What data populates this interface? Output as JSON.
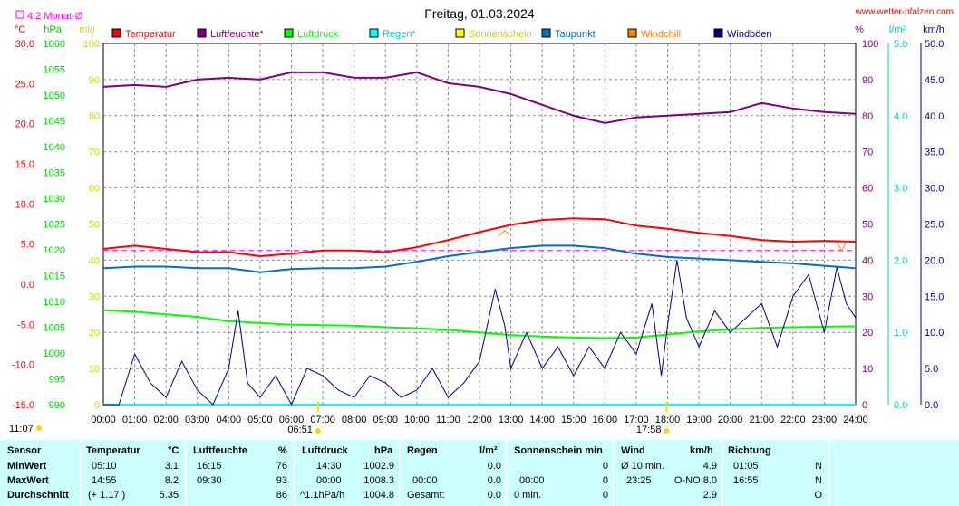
{
  "header": {
    "title": "Freitag, 01.03.2024",
    "site": "www.wetter-pfalzen.com",
    "month_avg": "4.2 Monat-Ø"
  },
  "units": {
    "left1": "°C",
    "left2": "hPa",
    "left3": "min",
    "right1": "%",
    "right2": "l/m²",
    "right3": "km/h"
  },
  "legend": [
    {
      "label": "Temperatur",
      "color": "#ff0000"
    },
    {
      "label": "Luftfeuchte*",
      "color": "#800080"
    },
    {
      "label": "Luftdruck",
      "color": "#00ff00"
    },
    {
      "label": "Regen*",
      "color": "#00ffff"
    },
    {
      "label": "Sonnenschein",
      "color": "#ffff00"
    },
    {
      "label": "Taupunkt",
      "color": "#0070c0"
    },
    {
      "label": "Windchill",
      "color": "#ff8000"
    },
    {
      "label": "Windböen",
      "color": "#000080"
    }
  ],
  "markers": {
    "sunrise": "06:51",
    "sunset": "17:58",
    "sunshine_time": "11:07"
  },
  "chart_data": {
    "type": "line",
    "x_ticks": [
      "00:00",
      "01:00",
      "02:00",
      "03:00",
      "04:00",
      "05:00",
      "06:00",
      "07:00",
      "08:00",
      "09:00",
      "10:00",
      "11:00",
      "12:00",
      "13:00",
      "14:00",
      "15:00",
      "16:00",
      "17:00",
      "18:00",
      "19:00",
      "20:00",
      "21:00",
      "22:00",
      "23:00",
      "24:00"
    ],
    "axes": {
      "temperature_c": {
        "ticks": [
          "30.0",
          "25.0",
          "20.0",
          "15.0",
          "10.0",
          "5.0",
          "0.0",
          "-5.0",
          "-10.0",
          "-15.0"
        ],
        "range": [
          -15,
          30
        ]
      },
      "pressure_hpa": {
        "ticks": [
          "1060",
          "1055",
          "1050",
          "1045",
          "1040",
          "1035",
          "1030",
          "1025",
          "1020",
          "1015",
          "1010",
          "1005",
          "1000",
          "995",
          "990"
        ],
        "range": [
          990,
          1060
        ]
      },
      "sunshine_min": {
        "ticks": [
          "100",
          "90",
          "80",
          "70",
          "60",
          "50",
          "40",
          "30",
          "20",
          "10",
          "0"
        ],
        "range": [
          0,
          100
        ]
      },
      "humidity_pct": {
        "ticks": [
          "100",
          "90",
          "80",
          "70",
          "60",
          "50",
          "40",
          "30",
          "20",
          "10",
          "0"
        ],
        "range": [
          0,
          100
        ]
      },
      "rain_mm": {
        "ticks": [
          "5.0",
          "4.0",
          "3.0",
          "2.0",
          "1.0",
          "0.0"
        ],
        "range": [
          0,
          5
        ]
      },
      "wind_kmh": {
        "ticks": [
          "50.0",
          "45.0",
          "40.0",
          "35.0",
          "30.0",
          "25.0",
          "20.0",
          "15.0",
          "10.0",
          "5.0",
          "0.0"
        ],
        "range": [
          0,
          50
        ]
      }
    },
    "month_avg_temp": 4.2,
    "series": [
      {
        "name": "Temperatur",
        "color": "#ff0000",
        "axis": "temperature_c",
        "points": [
          [
            0,
            4.4
          ],
          [
            1,
            4.8
          ],
          [
            2,
            4.4
          ],
          [
            3,
            4.0
          ],
          [
            4,
            4.0
          ],
          [
            5,
            3.5
          ],
          [
            6,
            3.8
          ],
          [
            7,
            4.2
          ],
          [
            8,
            4.2
          ],
          [
            9,
            4.0
          ],
          [
            10,
            4.6
          ],
          [
            11,
            5.5
          ],
          [
            12,
            6.5
          ],
          [
            13,
            7.4
          ],
          [
            14,
            8.0
          ],
          [
            15,
            8.2
          ],
          [
            16,
            8.1
          ],
          [
            17,
            7.3
          ],
          [
            18,
            6.9
          ],
          [
            19,
            6.4
          ],
          [
            20,
            6.0
          ],
          [
            21,
            5.5
          ],
          [
            22,
            5.3
          ],
          [
            23,
            5.4
          ],
          [
            24,
            5.3
          ]
        ]
      },
      {
        "name": "Luftfeuchte*",
        "color": "#800080",
        "axis": "humidity_pct",
        "points": [
          [
            0,
            88
          ],
          [
            1,
            88.5
          ],
          [
            2,
            88
          ],
          [
            3,
            90
          ],
          [
            4,
            90.5
          ],
          [
            5,
            90
          ],
          [
            6,
            92
          ],
          [
            7,
            92
          ],
          [
            8,
            90.5
          ],
          [
            9,
            90.5
          ],
          [
            10,
            92
          ],
          [
            11,
            89
          ],
          [
            12,
            88
          ],
          [
            13,
            86
          ],
          [
            14,
            83
          ],
          [
            15,
            80
          ],
          [
            16,
            78
          ],
          [
            17,
            79.5
          ],
          [
            18,
            80
          ],
          [
            19,
            80.5
          ],
          [
            20,
            81
          ],
          [
            21,
            83.5
          ],
          [
            22,
            82
          ],
          [
            23,
            81
          ],
          [
            24,
            80.5
          ]
        ]
      },
      {
        "name": "Luftdruck",
        "color": "#00ff00",
        "axis": "pressure_hpa",
        "points": [
          [
            0,
            1008.3
          ],
          [
            1,
            1008.0
          ],
          [
            2,
            1007.5
          ],
          [
            3,
            1007.0
          ],
          [
            4,
            1006.2
          ],
          [
            5,
            1005.8
          ],
          [
            6,
            1005.5
          ],
          [
            7,
            1005.4
          ],
          [
            8,
            1005.3
          ],
          [
            9,
            1005.0
          ],
          [
            10,
            1004.8
          ],
          [
            11,
            1004.5
          ],
          [
            12,
            1004.0
          ],
          [
            13,
            1003.5
          ],
          [
            14,
            1003.2
          ],
          [
            15,
            1003.0
          ],
          [
            16,
            1002.9
          ],
          [
            17,
            1003.0
          ],
          [
            18,
            1003.6
          ],
          [
            19,
            1004.2
          ],
          [
            20,
            1004.6
          ],
          [
            21,
            1004.9
          ],
          [
            22,
            1005.0
          ],
          [
            23,
            1005.1
          ],
          [
            24,
            1005.2
          ]
        ]
      },
      {
        "name": "Taupunkt",
        "color": "#0070c0",
        "axis": "temperature_c",
        "points": [
          [
            0,
            2.0
          ],
          [
            1,
            2.2
          ],
          [
            2,
            2.2
          ],
          [
            3,
            2.0
          ],
          [
            4,
            2.0
          ],
          [
            5,
            1.5
          ],
          [
            6,
            1.9
          ],
          [
            7,
            2.0
          ],
          [
            8,
            2.0
          ],
          [
            9,
            2.2
          ],
          [
            10,
            2.8
          ],
          [
            11,
            3.5
          ],
          [
            12,
            4.0
          ],
          [
            13,
            4.5
          ],
          [
            14,
            4.8
          ],
          [
            15,
            4.8
          ],
          [
            16,
            4.5
          ],
          [
            17,
            3.8
          ],
          [
            18,
            3.4
          ],
          [
            19,
            3.2
          ],
          [
            20,
            3.0
          ],
          [
            21,
            2.8
          ],
          [
            22,
            2.6
          ],
          [
            23,
            2.3
          ],
          [
            24,
            2.0
          ]
        ]
      },
      {
        "name": "Windchill",
        "color": "#ff8000",
        "axis": "temperature_c",
        "points": [
          [
            12.6,
            6.0
          ],
          [
            12.8,
            6.7
          ],
          [
            23.4,
            5.3
          ],
          [
            23.55,
            4.1
          ],
          [
            23.7,
            5.3
          ]
        ]
      },
      {
        "name": "Regen*",
        "color": "#00ffff",
        "axis": "rain_mm",
        "points": [
          [
            0,
            0
          ],
          [
            24,
            0
          ]
        ]
      },
      {
        "name": "Windböen",
        "color": "#000080",
        "axis": "wind_kmh",
        "points": [
          [
            0,
            0
          ],
          [
            0.5,
            0
          ],
          [
            1.0,
            7
          ],
          [
            1.5,
            3
          ],
          [
            2.0,
            1
          ],
          [
            2.5,
            6
          ],
          [
            3.0,
            2
          ],
          [
            3.5,
            0
          ],
          [
            4.0,
            5
          ],
          [
            4.3,
            13
          ],
          [
            4.6,
            3
          ],
          [
            5.0,
            1
          ],
          [
            5.5,
            4
          ],
          [
            6.0,
            0
          ],
          [
            6.5,
            5
          ],
          [
            7.0,
            4
          ],
          [
            7.5,
            2
          ],
          [
            8.0,
            1
          ],
          [
            8.5,
            4
          ],
          [
            9.0,
            3
          ],
          [
            9.5,
            1
          ],
          [
            10.0,
            2
          ],
          [
            10.5,
            5
          ],
          [
            11.0,
            1
          ],
          [
            11.5,
            3
          ],
          [
            12.0,
            6
          ],
          [
            12.5,
            16
          ],
          [
            12.8,
            11
          ],
          [
            13.0,
            5
          ],
          [
            13.5,
            10
          ],
          [
            14.0,
            5
          ],
          [
            14.5,
            8
          ],
          [
            15.0,
            4
          ],
          [
            15.5,
            8
          ],
          [
            16.0,
            5
          ],
          [
            16.5,
            10
          ],
          [
            17.0,
            7
          ],
          [
            17.5,
            14
          ],
          [
            17.8,
            4
          ],
          [
            18.0,
            11
          ],
          [
            18.3,
            20
          ],
          [
            18.6,
            12
          ],
          [
            19.0,
            8
          ],
          [
            19.5,
            13
          ],
          [
            20.0,
            10
          ],
          [
            20.5,
            12
          ],
          [
            21.0,
            14
          ],
          [
            21.5,
            8
          ],
          [
            22.0,
            15
          ],
          [
            22.5,
            18
          ],
          [
            23.0,
            10
          ],
          [
            23.4,
            19
          ],
          [
            23.7,
            14
          ],
          [
            24,
            12
          ]
        ]
      }
    ],
    "markers": [
      {
        "name": "sunrise",
        "x": 6.85,
        "label": "06:51"
      },
      {
        "name": "sunset",
        "x": 17.97,
        "label": "17:58"
      }
    ]
  },
  "stats": {
    "sensor": {
      "header": "Sensor",
      "rows": [
        "MinWert",
        "MaxWert",
        "Durchschnitt"
      ]
    },
    "temperature": {
      "header": "Temperatur",
      "unit": "°C",
      "rows": [
        [
          "05:10",
          "3.1"
        ],
        [
          "14:55",
          "8.2"
        ],
        [
          "(+ 1.17 )",
          "5.35"
        ]
      ]
    },
    "humidity": {
      "header": "Luftfeuchte",
      "unit": "%",
      "rows": [
        [
          "16:15",
          "76"
        ],
        [
          "09:30",
          "93"
        ],
        [
          "",
          "86"
        ]
      ]
    },
    "pressure": {
      "header": "Luftdruck",
      "unit": "hPa",
      "rows": [
        [
          "14:30",
          "1002.9"
        ],
        [
          "00:00",
          "1008.3"
        ],
        [
          "^1.1hPa/h",
          "1004.8"
        ]
      ]
    },
    "rain": {
      "header": "Regen",
      "unit": "l/m²",
      "rows": [
        [
          "",
          ""
        ],
        [
          "00:00",
          "0.0"
        ],
        [
          "Gesamt:",
          "0.0"
        ]
      ],
      "min": "0.0"
    },
    "sunshine": {
      "header": "Sonnenschein min",
      "rows": [
        [
          "",
          ""
        ],
        [
          "00:00",
          "0"
        ],
        [
          "0 min.",
          "0"
        ]
      ],
      "min": "0"
    },
    "wind": {
      "header": "Wind",
      "unit": "km/h",
      "rows": [
        [
          "Ø 10 min.",
          "4.9"
        ],
        [
          "23:25",
          "O-NO 8.0"
        ],
        [
          "",
          "2.9"
        ]
      ]
    },
    "direction": {
      "header": "Richtung",
      "rows": [
        [
          "01:05",
          "N"
        ],
        [
          "16:55",
          "N"
        ],
        [
          "",
          "O"
        ]
      ]
    }
  }
}
